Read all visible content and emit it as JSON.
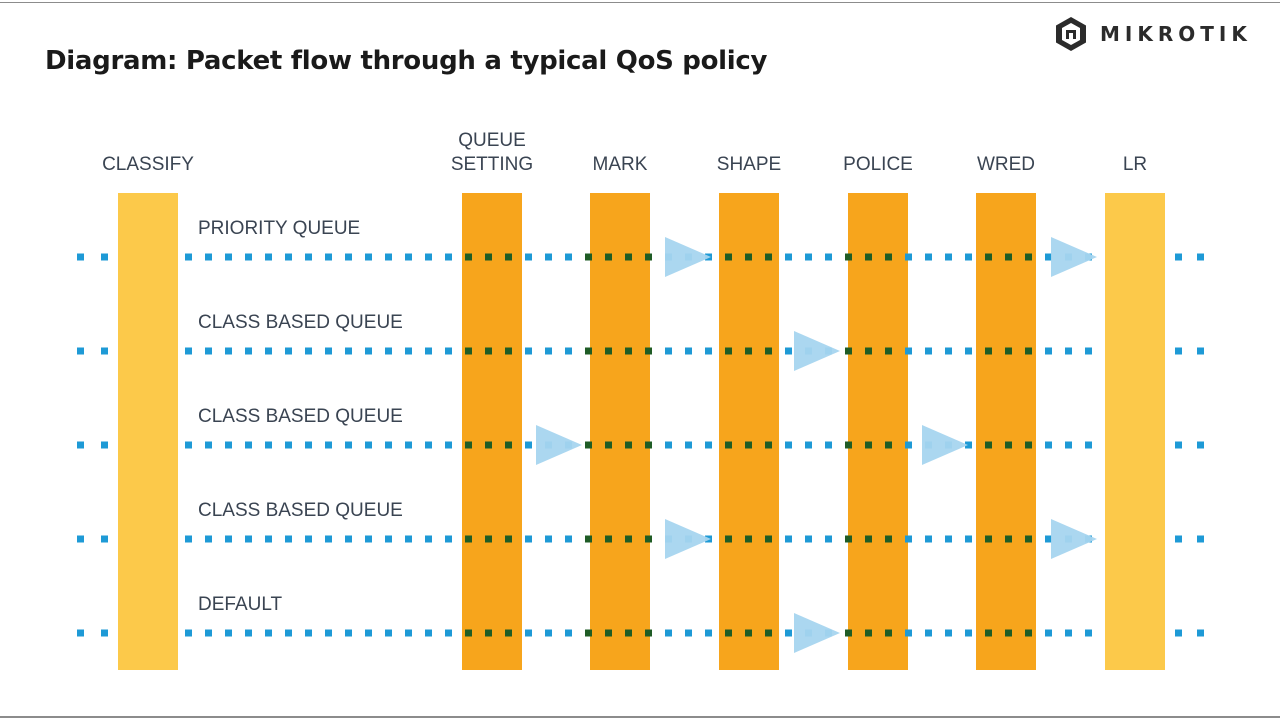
{
  "title": "Diagram: Packet flow through a typical QoS policy",
  "brand": {
    "name": "MIKROTIK",
    "logo_icon": "mikrotik-hexagon-logo"
  },
  "stages": [
    {
      "id": "classify",
      "label_lines": [
        "CLASSIFY"
      ],
      "color": "#fcc94a"
    },
    {
      "id": "queue-setting",
      "label_lines": [
        "QUEUE",
        "SETTING"
      ],
      "color": "#f7a51c"
    },
    {
      "id": "mark",
      "label_lines": [
        "MARK"
      ],
      "color": "#f7a51c"
    },
    {
      "id": "shape",
      "label_lines": [
        "SHAPE"
      ],
      "color": "#f7a51c"
    },
    {
      "id": "police",
      "label_lines": [
        "POLICE"
      ],
      "color": "#f7a51c"
    },
    {
      "id": "wred",
      "label_lines": [
        "WRED"
      ],
      "color": "#f7a51c"
    },
    {
      "id": "lr",
      "label_lines": [
        "LR"
      ],
      "color": "#fcc94a"
    }
  ],
  "lanes": [
    {
      "label": "PRIORITY QUEUE",
      "arrows_before": [
        "shape",
        "lr"
      ]
    },
    {
      "label": "CLASS BASED QUEUE",
      "arrows_before": [
        "police"
      ]
    },
    {
      "label": "CLASS BASED QUEUE",
      "arrows_before": [
        "mark",
        "wred"
      ]
    },
    {
      "label": "CLASS BASED QUEUE",
      "arrows_before": [
        "shape",
        "lr"
      ]
    },
    {
      "label": "DEFAULT",
      "arrows_before": [
        "police"
      ]
    }
  ],
  "colors": {
    "flow_dot": "#1e9ad6",
    "dot_on_bar": "#1f5c25",
    "arrow": "#a6d5ef",
    "text": "#3a4452"
  }
}
